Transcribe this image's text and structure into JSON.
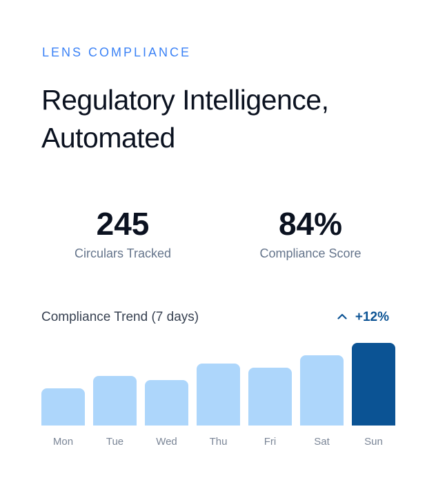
{
  "header": {
    "eyebrow": "LENS COMPLIANCE",
    "headline_line1": "Regulatory Intelligence,",
    "headline_line2": "Automated"
  },
  "stats": [
    {
      "value": "245",
      "label": "Circulars Tracked"
    },
    {
      "value": "84%",
      "label": "Compliance Score"
    }
  ],
  "trend": {
    "title": "Compliance Trend (7 days)",
    "change": "+12%",
    "change_icon": "chevron-up-icon"
  },
  "colors": {
    "accent": "#3b82f6",
    "bar": "#add6fb",
    "bar_highlight": "#0b5394",
    "text_dark": "#0b1220",
    "text_muted": "#64748b"
  },
  "chart_data": {
    "type": "bar",
    "title": "Compliance Trend (7 days)",
    "categories": [
      "Mon",
      "Tue",
      "Wed",
      "Thu",
      "Fri",
      "Sat",
      "Sun"
    ],
    "values": [
      54,
      72,
      66,
      90,
      84,
      102,
      120
    ],
    "highlight_index": 6,
    "ylim": [
      0,
      120
    ],
    "grid": false,
    "legend": "none"
  }
}
